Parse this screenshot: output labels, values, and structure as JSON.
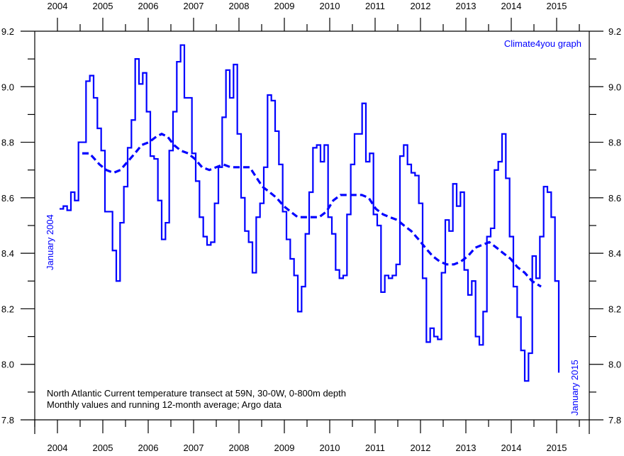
{
  "chart_data": {
    "type": "line",
    "title": "North Atlantic Current temperature transect at 59N, 30-0W, 0-800m depth",
    "subtitle": "Monthly values and running 12-month average; Argo data",
    "watermark": "Climate4you graph",
    "annotations": {
      "start": "January 2004",
      "end": "January 2015"
    },
    "xlabel": "",
    "ylabel": "",
    "xlim": [
      2003.5,
      2015.6
    ],
    "ylim": [
      7.8,
      9.2
    ],
    "x_ticks": [
      "2004",
      "2005",
      "2006",
      "2007",
      "2008",
      "2009",
      "2010",
      "2011",
      "2012",
      "2013",
      "2014",
      "2015"
    ],
    "y_ticks": [
      "9.2",
      "9.0",
      "8.8",
      "8.6",
      "8.4",
      "8.2",
      "8.0",
      "7.8"
    ],
    "grid": false,
    "color": "#0000ff",
    "series": [
      {
        "name": "Monthly values",
        "style": "step",
        "start": "2004-01",
        "values": [
          8.56,
          8.57,
          8.555,
          8.62,
          8.59,
          8.8,
          8.8,
          9.02,
          9.04,
          8.96,
          8.85,
          8.77,
          8.55,
          8.55,
          8.41,
          8.3,
          8.51,
          8.64,
          8.78,
          8.88,
          9.1,
          9.01,
          9.05,
          8.91,
          8.75,
          8.74,
          8.59,
          8.45,
          8.51,
          8.77,
          8.91,
          9.09,
          9.15,
          8.96,
          8.96,
          8.76,
          8.66,
          8.53,
          8.46,
          8.43,
          8.44,
          8.58,
          8.71,
          8.89,
          9.06,
          8.96,
          9.08,
          8.83,
          8.6,
          8.48,
          8.44,
          8.33,
          8.53,
          8.58,
          8.71,
          8.97,
          8.95,
          8.84,
          8.72,
          8.55,
          8.45,
          8.38,
          8.32,
          8.19,
          8.28,
          8.47,
          8.62,
          8.78,
          8.79,
          8.73,
          8.79,
          8.53,
          8.47,
          8.34,
          8.31,
          8.32,
          8.54,
          8.72,
          8.83,
          8.83,
          8.94,
          8.73,
          8.76,
          8.54,
          8.5,
          8.26,
          8.32,
          8.31,
          8.32,
          8.36,
          8.75,
          8.79,
          8.72,
          8.69,
          8.68,
          8.58,
          8.31,
          8.08,
          8.13,
          8.1,
          8.09,
          8.33,
          8.52,
          8.48,
          8.65,
          8.57,
          8.62,
          8.34,
          8.25,
          8.3,
          8.1,
          8.07,
          8.19,
          8.46,
          8.49,
          8.7,
          8.73,
          8.83,
          8.67,
          8.46,
          8.28,
          8.17,
          8.05,
          7.94,
          8.04,
          8.39,
          8.31,
          8.46,
          8.64,
          8.62,
          8.53,
          8.3,
          7.97
        ]
      },
      {
        "name": "Running 12-month average",
        "style": "dashed",
        "x": [
          2004.5,
          2004.66,
          2004.88,
          2005.03,
          2005.19,
          2005.34,
          2005.5,
          2005.66,
          2005.81,
          2005.97,
          2006.13,
          2006.25,
          2006.38,
          2006.52,
          2006.67,
          2006.83,
          2006.98,
          2007.14,
          2007.3,
          2007.45,
          2007.61,
          2007.77,
          2007.92,
          2008.08,
          2008.19,
          2008.31,
          2008.47,
          2008.63,
          2008.78,
          2008.94,
          2009.09,
          2009.25,
          2009.41,
          2009.56,
          2009.72,
          2009.88,
          2010.03,
          2010.19,
          2010.34,
          2010.5,
          2010.66,
          2010.81,
          2010.97,
          2011.13,
          2011.28,
          2011.44,
          2011.59,
          2011.75,
          2011.91,
          2012.06,
          2012.22,
          2012.38,
          2012.53,
          2012.69,
          2012.84,
          2013.0,
          2013.16,
          2013.31,
          2013.47,
          2013.63,
          2013.78,
          2013.94,
          2014.09,
          2014.25,
          2014.41,
          2014.61
        ],
        "values": [
          8.76,
          8.76,
          8.72,
          8.7,
          8.69,
          8.7,
          8.73,
          8.76,
          8.79,
          8.8,
          8.82,
          8.83,
          8.82,
          8.79,
          8.77,
          8.76,
          8.74,
          8.71,
          8.7,
          8.71,
          8.72,
          8.71,
          8.71,
          8.71,
          8.71,
          8.68,
          8.64,
          8.62,
          8.6,
          8.57,
          8.55,
          8.53,
          8.53,
          8.53,
          8.53,
          8.55,
          8.59,
          8.61,
          8.61,
          8.61,
          8.61,
          8.6,
          8.56,
          8.54,
          8.53,
          8.52,
          8.5,
          8.48,
          8.45,
          8.42,
          8.39,
          8.37,
          8.36,
          8.36,
          8.37,
          8.39,
          8.42,
          8.43,
          8.44,
          8.42,
          8.4,
          8.38,
          8.35,
          8.33,
          8.3,
          8.28
        ]
      }
    ]
  }
}
